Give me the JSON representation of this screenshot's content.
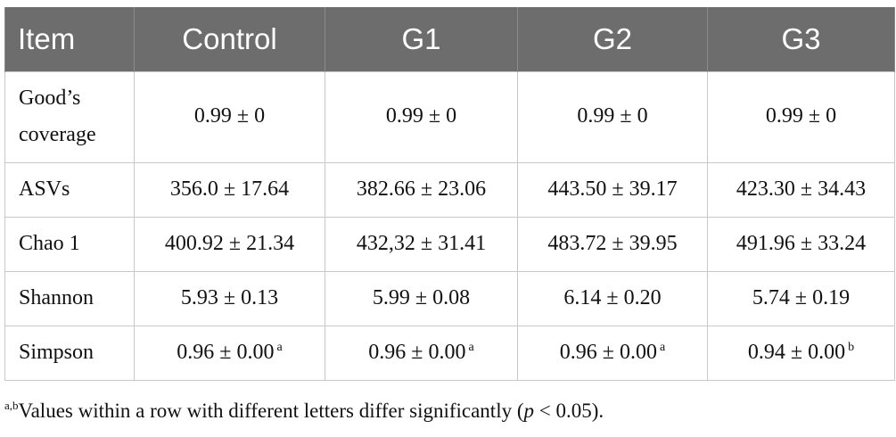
{
  "table": {
    "headers": [
      "Item",
      "Control",
      "G1",
      "G2",
      "G3"
    ],
    "rows": [
      {
        "item": "Good’s coverage",
        "item_line1": "Good’s",
        "item_line2": "coverage",
        "values": [
          "0.99 ± 0",
          "0.99 ± 0",
          "0.99 ± 0",
          "0.99 ± 0"
        ],
        "sups": [
          "",
          "",
          "",
          ""
        ]
      },
      {
        "item": "ASVs",
        "values": [
          "356.0 ± 17.64",
          "382.66 ± 23.06",
          "443.50 ± 39.17",
          "423.30 ± 34.43"
        ],
        "sups": [
          "",
          "",
          "",
          ""
        ]
      },
      {
        "item": "Chao 1",
        "values": [
          "400.92 ± 21.34",
          "432,32 ± 31.41",
          "483.72 ± 39.95",
          "491.96 ± 33.24"
        ],
        "sups": [
          "",
          "",
          "",
          ""
        ]
      },
      {
        "item": "Shannon",
        "values": [
          "5.93 ± 0.13",
          "5.99 ± 0.08",
          "6.14 ± 0.20",
          "5.74 ± 0.19"
        ],
        "sups": [
          "",
          "",
          "",
          ""
        ]
      },
      {
        "item": "Simpson",
        "values": [
          "0.96 ± 0.00",
          "0.96 ± 0.00",
          "0.96 ± 0.00",
          "0.94 ± 0.00"
        ],
        "sups": [
          "a",
          "a",
          "a",
          "b"
        ]
      }
    ]
  },
  "footnote": {
    "sup": "a,b",
    "text_before": "Values within a row with different letters differ significantly (",
    "p": "p",
    "text_after": " < 0.05)."
  },
  "colors": {
    "header_bg": "#6d6d6d",
    "header_text": "#ffffff",
    "grid": "#c8c8c8"
  }
}
